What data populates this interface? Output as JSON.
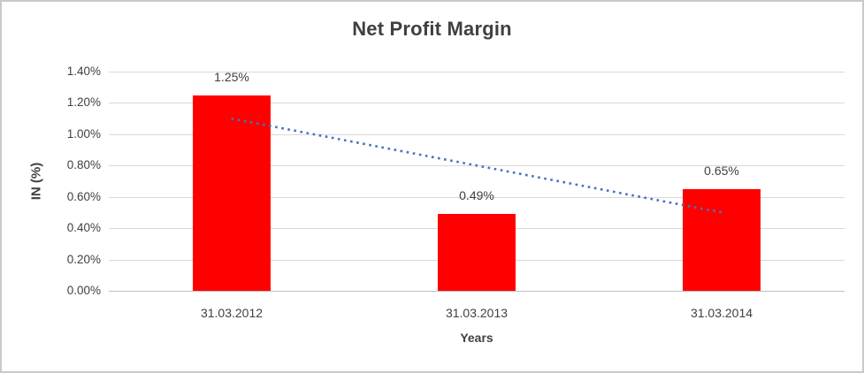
{
  "chart_data": {
    "type": "bar",
    "title": "Net Profit Margin",
    "xlabel": "Years",
    "ylabel": "IN (%)",
    "categories": [
      "31.03.2012",
      "31.03.2013",
      "31.03.2014"
    ],
    "values": [
      1.25,
      0.49,
      0.65
    ],
    "data_labels": [
      "1.25%",
      "0.49%",
      "0.65%"
    ],
    "ylim": [
      0,
      1.4
    ],
    "ytick_step": 0.2,
    "ytick_labels": [
      "0.00%",
      "0.20%",
      "0.40%",
      "0.60%",
      "0.80%",
      "1.00%",
      "1.20%",
      "1.40%"
    ],
    "grid": true,
    "legend_position": "none",
    "bar_color": "#ff0000",
    "gridline_color": "#d9d9d9",
    "axis_line_color": "#bfbfbf",
    "text_color": "#404040",
    "trendline": {
      "type": "linear",
      "style": "dotted",
      "color": "#4472c4",
      "start_value": 1.1,
      "end_value": 0.5
    }
  }
}
